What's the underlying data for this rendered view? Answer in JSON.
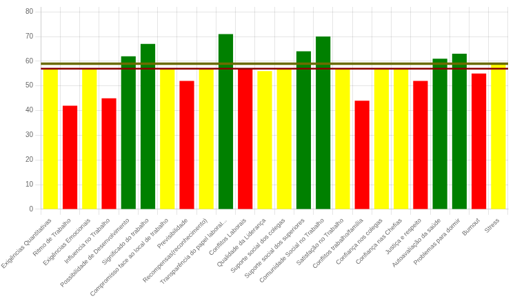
{
  "chart_data": {
    "type": "bar",
    "categories": [
      "Exigências Quantitativas",
      "Ritmo de Trabalho",
      "Exigências Emocionais",
      "Influencia no Trabalho",
      "Possibilidade de Desenvolvimento",
      "Significado do trabalho",
      "Compromisso face ao local de trabalho",
      "Previsibilidade",
      "Recompensas(reconhecimento)",
      "Transparência do papel laboraI...",
      "Conflitos Laborais",
      "Qualidade da Liderança",
      "Suporte social dos colegas",
      "Suporte social dos superiores",
      "Comunidade Social no Trabalho",
      "Satisfação no Trabalho",
      "Conflitos trabalho/família",
      "Confiança nos colegas",
      "Confiança nas Chefias",
      "Justiça e respeito",
      "Autoavaliação da saúde",
      "Problemas para dormir",
      "Burnout",
      "Stress"
    ],
    "values": [
      57,
      42,
      57,
      45,
      62,
      67,
      57,
      52,
      57,
      71,
      57,
      56,
      57,
      64,
      70,
      57,
      44,
      57,
      57,
      52,
      61,
      63,
      55,
      59
    ],
    "colors": [
      "#FFFF00",
      "#FF0000",
      "#FFFF00",
      "#FF0000",
      "#008000",
      "#008000",
      "#FFFF00",
      "#FF0000",
      "#FFFF00",
      "#008000",
      "#FF0000",
      "#FFFF00",
      "#FFFF00",
      "#008000",
      "#008000",
      "#FFFF00",
      "#FF0000",
      "#FFFF00",
      "#FFFF00",
      "#FF0000",
      "#008000",
      "#008000",
      "#FF0000",
      "#FFFF00"
    ],
    "hlines": [
      {
        "y": 59,
        "color": "#6B6B00"
      },
      {
        "y": 57,
        "color": "#8B0000"
      }
    ],
    "ylim": [
      0,
      82
    ],
    "yticks": [
      0,
      10,
      20,
      30,
      40,
      50,
      60,
      70,
      80
    ],
    "grid": true
  }
}
